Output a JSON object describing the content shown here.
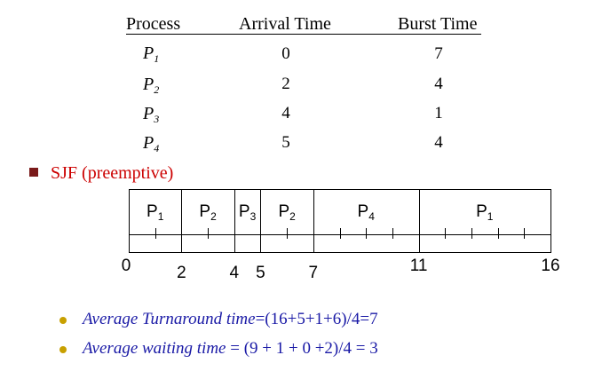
{
  "table": {
    "headers": {
      "process": "Process",
      "arrival": "Arrival Time",
      "burst": "Burst Time"
    },
    "rows": [
      {
        "proc": "P",
        "sub": "1",
        "arrival": "0",
        "burst": "7"
      },
      {
        "proc": "P",
        "sub": "2",
        "arrival": "2",
        "burst": "4"
      },
      {
        "proc": "P",
        "sub": "3",
        "arrival": "4",
        "burst": "1"
      },
      {
        "proc": "P",
        "sub": "4",
        "arrival": "5",
        "burst": "4"
      }
    ]
  },
  "section": {
    "label": "SJF (preemptive)",
    "color": "#cc0000",
    "bullet_color": "#7a1a1a"
  },
  "gantt": {
    "segments": [
      {
        "proc": "P",
        "sub": "1",
        "start": 0,
        "end": 2
      },
      {
        "proc": "P",
        "sub": "2",
        "start": 2,
        "end": 4
      },
      {
        "proc": "P",
        "sub": "3",
        "start": 4,
        "end": 5
      },
      {
        "proc": "P",
        "sub": "2",
        "start": 5,
        "end": 7
      },
      {
        "proc": "P",
        "sub": "4",
        "start": 7,
        "end": 11
      },
      {
        "proc": "P",
        "sub": "1",
        "start": 11,
        "end": 16
      }
    ],
    "axis_labels": [
      "0",
      "2",
      "4",
      "5",
      "7",
      "11",
      "16"
    ]
  },
  "stats": {
    "turnaround_label": "Average Turnaround time",
    "turnaround_expr": "=(16+5+1+6)/4=7",
    "waiting_label": "Average waiting time",
    "waiting_expr": " = (9 + 1 + 0 +2)/4 = 3",
    "text_color": "#1a1aa6",
    "bullet_color": "#c8a000"
  }
}
